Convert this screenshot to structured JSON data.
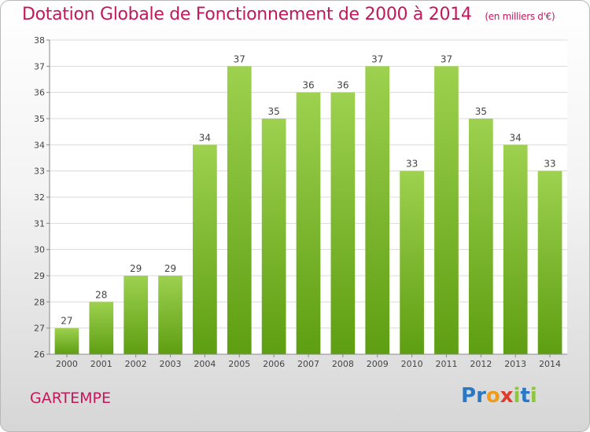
{
  "header": {
    "title": "Dotation Globale de Fonctionnement de 2000 à 2014",
    "subtitle": "(en milliers d'€)"
  },
  "footer": {
    "commune": "GARTEMPE",
    "brand": [
      {
        "t": "P",
        "color": "#2b78c5"
      },
      {
        "t": "r",
        "color": "#2b78c5"
      },
      {
        "t": "o",
        "color": "#f29a1a"
      },
      {
        "t": "x",
        "color": "#e03a2b"
      },
      {
        "t": "i",
        "color": "#8dc63f"
      },
      {
        "t": "t",
        "color": "#2b78c5"
      },
      {
        "t": "i",
        "color": "#8dc63f"
      }
    ]
  },
  "chart_data": {
    "type": "bar",
    "categories": [
      "2000",
      "2001",
      "2002",
      "2003",
      "2004",
      "2005",
      "2006",
      "2007",
      "2008",
      "2009",
      "2010",
      "2011",
      "2012",
      "2013",
      "2014"
    ],
    "values": [
      27,
      28,
      29,
      29,
      34,
      37,
      35,
      36,
      36,
      37,
      33,
      37,
      35,
      34,
      33
    ],
    "title": "Dotation Globale de Fonctionnement de 2000 à 2014",
    "ylim": [
      26,
      38
    ],
    "yticks": [
      26,
      27,
      28,
      29,
      30,
      31,
      32,
      33,
      34,
      35,
      36,
      37,
      38
    ],
    "grid": true,
    "bar_color_top": "#9dd14f",
    "bar_color_bottom": "#5e9e12",
    "data_labels": true
  }
}
